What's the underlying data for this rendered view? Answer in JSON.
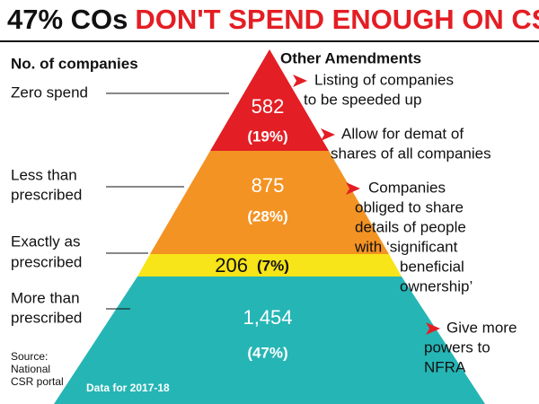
{
  "title": {
    "lead": "47% COs",
    "main": "DON'T SPEND ENOUGH ON CSR"
  },
  "left_heading": "No. of companies",
  "levels": [
    {
      "label": [
        "Zero spend"
      ],
      "count": "582",
      "share": "(19%)"
    },
    {
      "label": [
        "Less than",
        "prescribed"
      ],
      "count": "875",
      "share": "(28%)"
    },
    {
      "label": [
        "Exactly as",
        "prescribed"
      ],
      "count": "206",
      "share": "(7%)"
    },
    {
      "label": [
        "More than",
        "prescribed"
      ],
      "count": "1,454",
      "share": "(47%)"
    }
  ],
  "amendments": {
    "heading": "Other Amendments",
    "items": [
      [
        "Listing of companies",
        "to be speeded up"
      ],
      [
        "Allow for demat of",
        "shares of all companies"
      ],
      [
        "Companies",
        "obliged to share",
        "details of people",
        "with ‘significant",
        "beneficial",
        "ownership’"
      ],
      [
        "Give more",
        "powers to",
        "NFRA"
      ]
    ]
  },
  "source": [
    "Source:",
    "National",
    "CSR portal"
  ],
  "note": "Data for 2017-18"
}
